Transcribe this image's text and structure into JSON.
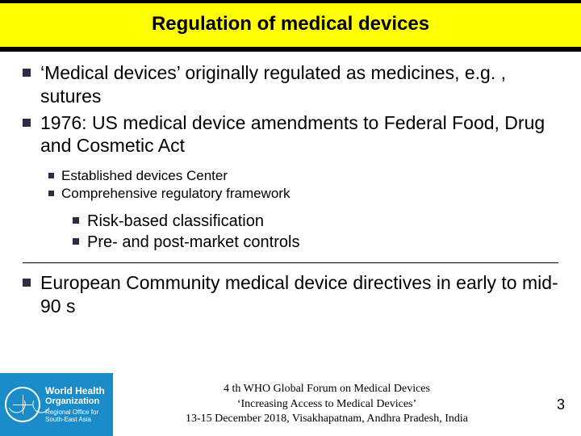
{
  "slide": {
    "title": "Regulation of medical devices",
    "colors": {
      "title_bg": "#ffff00",
      "bullet": "#2b2b4a",
      "logo_bg": "#1a8cc9",
      "text": "#000000",
      "page_bg": "#ffffff"
    },
    "fonts": {
      "body_family": "Arial",
      "footer_family": "Times New Roman",
      "title_size_pt": 24,
      "level1_size_pt": 23,
      "level2_size_pt": 17,
      "level3_size_pt": 20,
      "footer_size_pt": 14
    },
    "bullets_level1": [
      "‘Medical devices’ originally regulated as medicines, e.g. , sutures",
      "1976:  US medical device amendments to Federal Food, Drug and Cosmetic Act"
    ],
    "bullets_level2": [
      "Established devices Center",
      "Comprehensive regulatory framework"
    ],
    "bullets_level3": [
      "Risk-based classification",
      "Pre- and post-market controls"
    ],
    "bullets_level1b": [
      "European Community medical device directives in early to mid-90 s"
    ],
    "footer": {
      "logo": {
        "line1": "World Health",
        "line2": "Organization",
        "line3": "Regional Office for South-East Asia",
        "icon": "who-emblem"
      },
      "center_line1": "4 th WHO Global Forum on Medical Devices",
      "center_line2": "‘Increasing Access to Medical Devices’",
      "center_line3": "13-15 December 2018, Visakhapatnam, Andhra Pradesh, India",
      "page_number": "3"
    }
  }
}
